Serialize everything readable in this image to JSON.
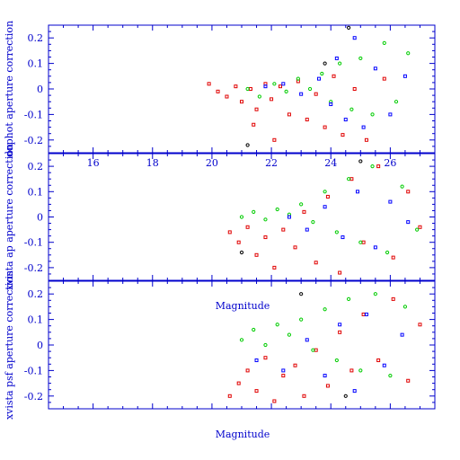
{
  "colors": {
    "axis": "#0000cc",
    "red": "#e00000",
    "green": "#00cc00",
    "blue": "#0000ff",
    "black": "#000000"
  },
  "chart_data": [
    {
      "type": "scatter",
      "ylabel": "dophot aperture correction",
      "xlabel": "",
      "xlim": [
        14.5,
        27.5
      ],
      "ylim": [
        -0.25,
        0.25
      ],
      "x_tick_labels": [
        "16",
        "18",
        "20",
        "22",
        "24",
        "26"
      ],
      "y_tick_labels": [
        "-0.2",
        "-0.1",
        "0",
        "0.1",
        "0.2"
      ],
      "series": [
        {
          "color": "red",
          "points": [
            [
              19.9,
              0.02
            ],
            [
              20.2,
              -0.01
            ],
            [
              20.5,
              -0.03
            ],
            [
              20.8,
              0.01
            ],
            [
              21.0,
              -0.05
            ],
            [
              21.3,
              0.0
            ],
            [
              21.5,
              -0.08
            ],
            [
              21.8,
              0.02
            ],
            [
              22.0,
              -0.04
            ],
            [
              22.3,
              0.01
            ],
            [
              22.6,
              -0.1
            ],
            [
              22.9,
              0.03
            ],
            [
              23.2,
              -0.12
            ],
            [
              23.5,
              -0.02
            ],
            [
              23.8,
              -0.15
            ],
            [
              24.1,
              0.05
            ],
            [
              24.4,
              -0.18
            ],
            [
              24.8,
              0.0
            ],
            [
              25.2,
              -0.2
            ],
            [
              25.8,
              0.04
            ],
            [
              21.4,
              -0.14
            ],
            [
              22.1,
              -0.2
            ]
          ]
        },
        {
          "color": "green",
          "points": [
            [
              21.2,
              0.0
            ],
            [
              21.6,
              -0.03
            ],
            [
              22.1,
              0.02
            ],
            [
              22.5,
              -0.01
            ],
            [
              22.9,
              0.04
            ],
            [
              23.3,
              0.0
            ],
            [
              23.7,
              0.06
            ],
            [
              24.0,
              -0.05
            ],
            [
              24.3,
              0.1
            ],
            [
              24.7,
              -0.08
            ],
            [
              25.0,
              0.12
            ],
            [
              25.4,
              -0.1
            ],
            [
              25.8,
              0.18
            ],
            [
              26.2,
              -0.05
            ],
            [
              26.6,
              0.14
            ]
          ]
        },
        {
          "color": "blue",
          "points": [
            [
              21.8,
              0.01
            ],
            [
              22.4,
              0.02
            ],
            [
              23.0,
              -0.02
            ],
            [
              23.6,
              0.04
            ],
            [
              24.0,
              -0.06
            ],
            [
              24.2,
              0.12
            ],
            [
              24.5,
              -0.12
            ],
            [
              24.8,
              0.2
            ],
            [
              25.1,
              -0.15
            ],
            [
              25.5,
              0.08
            ],
            [
              26.0,
              -0.1
            ],
            [
              26.5,
              0.05
            ]
          ]
        },
        {
          "color": "black",
          "points": [
            [
              21.2,
              -0.22
            ],
            [
              23.8,
              0.1
            ],
            [
              24.6,
              0.24
            ]
          ]
        }
      ]
    },
    {
      "type": "scatter",
      "ylabel": "xvista ap aperture correction",
      "xlabel": "Magnitude",
      "xlim": [
        14.5,
        27.5
      ],
      "ylim": [
        -0.25,
        0.25
      ],
      "x_tick_labels": [],
      "y_tick_labels": [
        "-0.2",
        "-0.1",
        "0",
        "0.1",
        "0.2"
      ],
      "series": [
        {
          "color": "red",
          "points": [
            [
              20.6,
              -0.06
            ],
            [
              20.9,
              -0.1
            ],
            [
              21.2,
              -0.04
            ],
            [
              21.5,
              -0.15
            ],
            [
              21.8,
              -0.08
            ],
            [
              22.1,
              -0.2
            ],
            [
              22.4,
              -0.05
            ],
            [
              22.8,
              -0.12
            ],
            [
              23.1,
              0.02
            ],
            [
              23.5,
              -0.18
            ],
            [
              23.9,
              0.08
            ],
            [
              24.3,
              -0.22
            ],
            [
              24.7,
              0.15
            ],
            [
              25.1,
              -0.1
            ],
            [
              25.6,
              0.2
            ],
            [
              26.1,
              -0.16
            ],
            [
              26.6,
              0.1
            ],
            [
              27.0,
              -0.04
            ]
          ]
        },
        {
          "color": "green",
          "points": [
            [
              21.0,
              0.0
            ],
            [
              21.4,
              0.02
            ],
            [
              21.8,
              -0.01
            ],
            [
              22.2,
              0.03
            ],
            [
              22.6,
              0.01
            ],
            [
              23.0,
              0.05
            ],
            [
              23.4,
              -0.02
            ],
            [
              23.8,
              0.1
            ],
            [
              24.2,
              -0.06
            ],
            [
              24.6,
              0.15
            ],
            [
              25.0,
              -0.1
            ],
            [
              25.4,
              0.2
            ],
            [
              25.9,
              -0.14
            ],
            [
              26.4,
              0.12
            ],
            [
              26.9,
              -0.05
            ]
          ]
        },
        {
          "color": "blue",
          "points": [
            [
              22.6,
              0.0
            ],
            [
              23.2,
              -0.05
            ],
            [
              23.8,
              0.04
            ],
            [
              24.4,
              -0.08
            ],
            [
              24.9,
              0.1
            ],
            [
              25.5,
              -0.12
            ],
            [
              26.0,
              0.06
            ],
            [
              26.6,
              -0.02
            ]
          ]
        },
        {
          "color": "black",
          "points": [
            [
              21.0,
              -0.14
            ],
            [
              25.0,
              0.22
            ]
          ]
        }
      ]
    },
    {
      "type": "scatter",
      "ylabel": "xvista psf aperture correction",
      "xlabel": "Magnitude",
      "xlim": [
        14.5,
        27.5
      ],
      "ylim": [
        -0.25,
        0.25
      ],
      "x_tick_labels": [],
      "y_tick_labels": [
        "-0.2",
        "-0.1",
        "0",
        "0.1",
        "0.2"
      ],
      "series": [
        {
          "color": "red",
          "points": [
            [
              20.6,
              -0.2
            ],
            [
              20.9,
              -0.15
            ],
            [
              21.2,
              -0.1
            ],
            [
              21.5,
              -0.18
            ],
            [
              21.8,
              -0.05
            ],
            [
              22.1,
              -0.22
            ],
            [
              22.4,
              -0.12
            ],
            [
              22.8,
              -0.08
            ],
            [
              23.1,
              -0.2
            ],
            [
              23.5,
              -0.02
            ],
            [
              23.9,
              -0.16
            ],
            [
              24.3,
              0.05
            ],
            [
              24.7,
              -0.1
            ],
            [
              25.1,
              0.12
            ],
            [
              25.6,
              -0.06
            ],
            [
              26.1,
              0.18
            ],
            [
              26.6,
              -0.14
            ],
            [
              27.0,
              0.08
            ]
          ]
        },
        {
          "color": "green",
          "points": [
            [
              21.0,
              0.02
            ],
            [
              21.4,
              0.06
            ],
            [
              21.8,
              0.0
            ],
            [
              22.2,
              0.08
            ],
            [
              22.6,
              0.04
            ],
            [
              23.0,
              0.1
            ],
            [
              23.4,
              -0.02
            ],
            [
              23.8,
              0.14
            ],
            [
              24.2,
              -0.06
            ],
            [
              24.6,
              0.18
            ],
            [
              25.0,
              -0.1
            ],
            [
              25.5,
              0.2
            ],
            [
              26.0,
              -0.12
            ],
            [
              26.5,
              0.15
            ]
          ]
        },
        {
          "color": "blue",
          "points": [
            [
              21.5,
              -0.06
            ],
            [
              22.4,
              -0.1
            ],
            [
              23.2,
              0.02
            ],
            [
              23.8,
              -0.12
            ],
            [
              24.3,
              0.08
            ],
            [
              24.8,
              -0.18
            ],
            [
              25.2,
              0.12
            ],
            [
              25.8,
              -0.08
            ],
            [
              26.4,
              0.04
            ]
          ]
        },
        {
          "color": "black",
          "points": [
            [
              23.0,
              0.2
            ],
            [
              24.5,
              -0.2
            ]
          ]
        }
      ]
    }
  ]
}
